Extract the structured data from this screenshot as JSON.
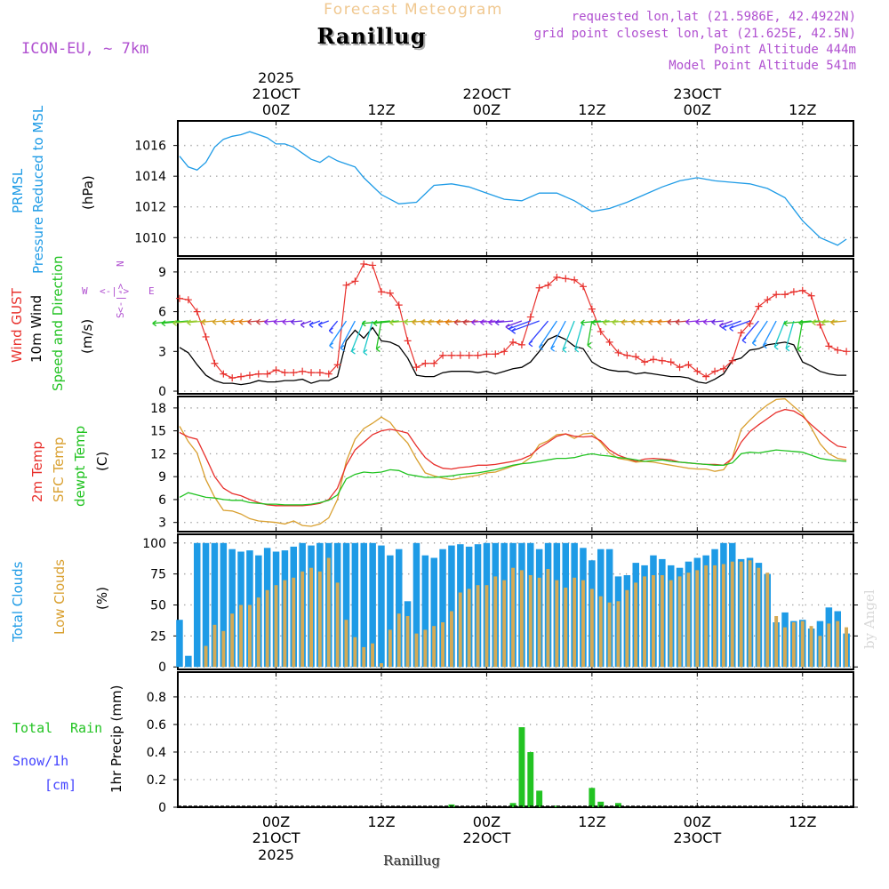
{
  "header": {
    "title_faint": "Forecast Meteogram",
    "station": "Ranillug",
    "model": "ICON-EU, ~ 7km",
    "requested": "requested lon,lat (21.5986E, 42.4922N)",
    "grid_point": "grid point closest lon,lat (21.625E, 42.5N)",
    "point_alt": "Point Altitude 444m",
    "model_alt": "Model Point Altitude 541m",
    "footer_station": "Ranillug",
    "watermark": "by Angel"
  },
  "colors": {
    "pressure": "#1e9be6",
    "gust": "#e8312d",
    "wind": "#000000",
    "temp2m": "#e8312d",
    "sfc": "#d9a030",
    "dewpt": "#22c322",
    "total_clouds": "#1e9be6",
    "low_clouds": "#d4aa55",
    "rain": "#22c322",
    "snow": "#4444ff",
    "label_purple": "#b050d0",
    "title_faint": "#f0c890"
  },
  "time_axis": {
    "top_year": "2025",
    "ticks": [
      {
        "h": 24,
        "label": "00Z",
        "date": "21OCT"
      },
      {
        "h": 36,
        "label": "12Z",
        "date": ""
      },
      {
        "h": 48,
        "label": "00Z",
        "date": "22OCT"
      },
      {
        "h": 60,
        "label": "12Z",
        "date": ""
      },
      {
        "h": 72,
        "label": "00Z",
        "date": "23OCT"
      },
      {
        "h": 84,
        "label": "12Z",
        "date": ""
      }
    ],
    "bottom_year": "2025"
  },
  "panels_text": {
    "pressure": {
      "label1": "PRMSL",
      "label2": "Pressure Reduced to MSL",
      "unit": "(hPa)"
    },
    "wind": {
      "gust": "Wind GUST",
      "wind": "10m Wind",
      "speed": "Speed and Direction",
      "unit": "(m/s)",
      "compass_w": "W",
      "compass_e": "E",
      "compass_n": "N",
      "compass_s": "S"
    },
    "temp": {
      "t2m": "2m Temp",
      "sfc": "SFC Temp",
      "dewpt": "dewpt Temp",
      "unit": "(C)"
    },
    "clouds": {
      "total": "Total Clouds",
      "low": "Low Clouds",
      "unit": "(%)"
    },
    "precip": {
      "total": "Total",
      "rain": "Rain",
      "snow": "Snow/1h",
      "cm": "[cm]",
      "unit": "1hr Precip (mm)"
    }
  },
  "chart_data": [
    {
      "type": "line",
      "title": "PRMSL Pressure Reduced to MSL",
      "ylabel": "(hPa)",
      "ylim": [
        1008.8,
        1017.6
      ],
      "yticks": [
        1010,
        1012,
        1014,
        1016
      ],
      "x": [
        13,
        14,
        15,
        16,
        17,
        18,
        19,
        20,
        21,
        22,
        23,
        24,
        25,
        26,
        27,
        28,
        29,
        30,
        31,
        32,
        33,
        34,
        36,
        38,
        40,
        42,
        44,
        46,
        48,
        50,
        52,
        54,
        56,
        58,
        60,
        62,
        64,
        66,
        68,
        70,
        72,
        74,
        76,
        78,
        80,
        82,
        84,
        86,
        88,
        89
      ],
      "values": [
        1015.3,
        1014.6,
        1014.4,
        1014.9,
        1015.9,
        1016.4,
        1016.6,
        1016.7,
        1016.9,
        1016.7,
        1016.5,
        1016.1,
        1016.1,
        1015.9,
        1015.5,
        1015.1,
        1014.9,
        1015.3,
        1015.0,
        1014.8,
        1014.6,
        1013.9,
        1012.8,
        1012.2,
        1012.3,
        1013.4,
        1013.5,
        1013.3,
        1012.9,
        1012.5,
        1012.4,
        1012.9,
        1012.9,
        1012.4,
        1011.7,
        1011.9,
        1012.3,
        1012.8,
        1013.3,
        1013.7,
        1013.9,
        1013.7,
        1013.6,
        1013.5,
        1013.2,
        1012.6,
        1011.1,
        1010.0,
        1009.5,
        1009.9
      ]
    },
    {
      "type": "line",
      "title": "Wind GUST / 10m Wind Speed and Direction",
      "ylabel": "(m/s)",
      "ylim": [
        -0.2,
        10
      ],
      "yticks": [
        0,
        3,
        6,
        9
      ],
      "x": [
        13,
        14,
        15,
        16,
        17,
        18,
        19,
        20,
        21,
        22,
        23,
        24,
        25,
        26,
        27,
        28,
        29,
        30,
        31,
        32,
        33,
        34,
        35,
        36,
        37,
        38,
        39,
        40,
        41,
        42,
        43,
        44,
        45,
        46,
        47,
        48,
        49,
        50,
        51,
        52,
        53,
        54,
        55,
        56,
        57,
        58,
        59,
        60,
        61,
        62,
        63,
        64,
        65,
        66,
        67,
        68,
        69,
        70,
        71,
        72,
        73,
        74,
        75,
        76,
        77,
        78,
        79,
        80,
        81,
        82,
        83,
        84,
        85,
        86,
        87,
        88,
        89
      ],
      "gust": [
        7.0,
        6.9,
        6.0,
        4.1,
        2.1,
        1.3,
        1.0,
        1.1,
        1.2,
        1.3,
        1.3,
        1.6,
        1.4,
        1.4,
        1.5,
        1.4,
        1.4,
        1.3,
        2.0,
        8.0,
        8.3,
        9.6,
        9.5,
        7.5,
        7.4,
        6.5,
        3.8,
        1.8,
        2.1,
        2.1,
        2.7,
        2.7,
        2.7,
        2.7,
        2.7,
        2.8,
        2.8,
        3.0,
        3.7,
        3.5,
        5.6,
        7.8,
        8.0,
        8.6,
        8.5,
        8.4,
        7.9,
        6.2,
        4.5,
        3.7,
        2.9,
        2.7,
        2.6,
        2.2,
        2.4,
        2.3,
        2.2,
        1.8,
        2.0,
        1.5,
        1.1,
        1.5,
        1.7,
        2.3,
        4.4,
        5.1,
        6.4,
        6.9,
        7.3,
        7.3,
        7.5,
        7.6,
        7.2,
        5.0,
        3.4,
        3.1,
        3.0
      ],
      "wind": [
        3.3,
        2.9,
        2.0,
        1.2,
        0.8,
        0.6,
        0.6,
        0.5,
        0.6,
        0.8,
        0.7,
        0.7,
        0.8,
        0.8,
        0.9,
        0.6,
        0.8,
        0.8,
        1.1,
        3.8,
        4.6,
        4.0,
        4.8,
        3.8,
        3.7,
        3.4,
        2.5,
        1.2,
        1.1,
        1.1,
        1.4,
        1.5,
        1.5,
        1.5,
        1.4,
        1.5,
        1.3,
        1.5,
        1.7,
        1.8,
        2.2,
        3.0,
        3.9,
        4.2,
        3.9,
        3.4,
        3.2,
        2.2,
        1.8,
        1.6,
        1.5,
        1.5,
        1.3,
        1.4,
        1.3,
        1.2,
        1.1,
        1.1,
        1.0,
        0.7,
        0.6,
        0.9,
        1.3,
        2.3,
        2.5,
        3.1,
        3.2,
        3.5,
        3.6,
        3.7,
        3.5,
        2.2,
        1.9,
        1.5,
        1.3,
        1.2,
        1.2
      ],
      "arrows_start": 13,
      "arrows_end": 89
    },
    {
      "type": "line",
      "title": "2m Temp / SFC Temp / dewpt Temp",
      "ylabel": "(C)",
      "ylim": [
        1.8,
        19.5
      ],
      "yticks": [
        3,
        6,
        9,
        12,
        15,
        18
      ],
      "x": [
        13,
        14,
        15,
        16,
        17,
        18,
        19,
        20,
        21,
        22,
        23,
        24,
        25,
        26,
        27,
        28,
        29,
        30,
        31,
        32,
        33,
        34,
        35,
        36,
        37,
        38,
        39,
        40,
        41,
        42,
        43,
        44,
        45,
        46,
        47,
        48,
        49,
        50,
        51,
        52,
        53,
        54,
        55,
        56,
        57,
        58,
        59,
        60,
        61,
        62,
        63,
        64,
        65,
        66,
        67,
        68,
        69,
        70,
        71,
        72,
        73,
        74,
        75,
        76,
        77,
        78,
        79,
        80,
        81,
        82,
        83,
        84,
        85,
        86,
        87,
        88,
        89
      ],
      "t2m": [
        14.8,
        14.2,
        13.9,
        11.5,
        9.0,
        7.5,
        6.8,
        6.5,
        6.0,
        5.6,
        5.3,
        5.2,
        5.2,
        5.2,
        5.2,
        5.3,
        5.5,
        6.0,
        7.5,
        10.5,
        12.5,
        13.5,
        14.5,
        15.0,
        15.2,
        15.0,
        14.7,
        13.0,
        11.5,
        10.6,
        10.1,
        10.0,
        10.2,
        10.3,
        10.5,
        10.5,
        10.6,
        10.8,
        11.0,
        11.3,
        11.8,
        12.8,
        13.5,
        14.3,
        14.6,
        14.3,
        14.2,
        14.3,
        13.7,
        12.5,
        11.8,
        11.4,
        11.0,
        11.3,
        11.4,
        11.3,
        11.2,
        10.9,
        10.8,
        10.7,
        10.6,
        10.6,
        10.5,
        11.4,
        13.5,
        14.9,
        15.8,
        16.6,
        17.4,
        17.8,
        17.6,
        16.9,
        15.8,
        14.8,
        13.8,
        13.0,
        12.8
      ],
      "sfc": [
        15.6,
        13.6,
        12.1,
        8.6,
        6.3,
        4.6,
        4.5,
        4.1,
        3.5,
        3.2,
        3.1,
        3.0,
        2.8,
        3.2,
        2.6,
        2.5,
        2.8,
        3.6,
        6.0,
        11.0,
        13.9,
        15.3,
        16.0,
        16.8,
        16.1,
        14.6,
        13.4,
        11.3,
        9.5,
        9.1,
        8.8,
        8.6,
        8.8,
        9.0,
        9.2,
        9.5,
        9.6,
        10.0,
        10.4,
        10.7,
        11.5,
        13.2,
        13.7,
        14.5,
        14.6,
        14.0,
        14.6,
        14.7,
        13.5,
        12.1,
        11.4,
        11.2,
        10.9,
        11.0,
        10.9,
        10.7,
        10.5,
        10.3,
        10.1,
        10.0,
        10.0,
        9.7,
        9.9,
        11.5,
        15.2,
        16.4,
        17.5,
        18.4,
        19.1,
        19.2,
        18.2,
        17.2,
        15.4,
        13.3,
        12.0,
        11.4,
        11.2
      ],
      "dewpt": [
        6.3,
        6.9,
        6.6,
        6.3,
        6.2,
        6.0,
        5.9,
        5.9,
        5.6,
        5.5,
        5.4,
        5.4,
        5.3,
        5.3,
        5.3,
        5.4,
        5.6,
        5.9,
        6.6,
        8.7,
        9.3,
        9.6,
        9.5,
        9.6,
        9.9,
        9.8,
        9.3,
        9.1,
        8.9,
        8.9,
        9.0,
        9.1,
        9.3,
        9.4,
        9.5,
        9.7,
        9.9,
        10.2,
        10.5,
        10.7,
        10.8,
        11.0,
        11.2,
        11.4,
        11.4,
        11.5,
        11.8,
        12.0,
        11.8,
        11.7,
        11.5,
        11.4,
        11.2,
        11.0,
        11.1,
        11.2,
        11.0,
        10.9,
        10.8,
        10.7,
        10.6,
        10.5,
        10.5,
        10.8,
        12.0,
        12.2,
        12.1,
        12.3,
        12.5,
        12.4,
        12.3,
        12.2,
        11.8,
        11.4,
        11.2,
        11.1,
        11.0
      ]
    },
    {
      "type": "bar",
      "title": "Total Clouds / Low Clouds",
      "ylabel": "(%)",
      "ylim": [
        -2,
        107
      ],
      "yticks": [
        0,
        25,
        50,
        75,
        100
      ],
      "x": [
        13,
        14,
        15,
        16,
        17,
        18,
        19,
        20,
        21,
        22,
        23,
        24,
        25,
        26,
        27,
        28,
        29,
        30,
        31,
        32,
        33,
        34,
        35,
        36,
        37,
        38,
        39,
        40,
        41,
        42,
        43,
        44,
        45,
        46,
        47,
        48,
        49,
        50,
        51,
        52,
        53,
        54,
        55,
        56,
        57,
        58,
        59,
        60,
        61,
        62,
        63,
        64,
        65,
        66,
        67,
        68,
        69,
        70,
        71,
        72,
        73,
        74,
        75,
        76,
        77,
        78,
        79,
        80,
        81,
        82,
        83,
        84,
        85,
        86,
        87,
        88,
        89
      ],
      "total": [
        38,
        9,
        100,
        100,
        100,
        100,
        95,
        93,
        94,
        90,
        96,
        93,
        94,
        97,
        100,
        98,
        100,
        100,
        100,
        100,
        100,
        100,
        100,
        98,
        90,
        95,
        53,
        100,
        90,
        88,
        95,
        98,
        99,
        97,
        99,
        100,
        100,
        100,
        100,
        100,
        100,
        95,
        100,
        100,
        100,
        100,
        96,
        86,
        95,
        95,
        73,
        74,
        84,
        82,
        90,
        87,
        82,
        80,
        85,
        88,
        90,
        95,
        100,
        100,
        87,
        88,
        84,
        75,
        36,
        44,
        37,
        38,
        31,
        37,
        48,
        45,
        27
      ],
      "low": [
        0,
        0,
        0,
        17,
        34,
        29,
        43,
        50,
        50,
        56,
        62,
        66,
        70,
        72,
        77,
        80,
        77,
        88,
        68,
        38,
        24,
        16,
        19,
        3,
        30,
        43,
        41,
        27,
        30,
        33,
        36,
        45,
        60,
        63,
        66,
        66,
        73,
        70,
        80,
        78,
        74,
        72,
        79,
        70,
        64,
        72,
        70,
        63,
        57,
        52,
        53,
        62,
        68,
        73,
        74,
        74,
        70,
        73,
        76,
        78,
        82,
        82,
        83,
        85,
        85,
        86,
        80,
        76,
        41,
        32,
        36,
        37,
        33,
        25,
        35,
        37,
        32
      ]
    },
    {
      "type": "bar",
      "title": "1hr Precip (mm)",
      "ylabel": "1hr Precip (mm)",
      "ylim": [
        0,
        0.98
      ],
      "yticks": [
        0,
        0.2,
        0.4,
        0.6,
        0.8
      ],
      "x": [
        44,
        51,
        52,
        53,
        54,
        56,
        60,
        61,
        63
      ],
      "rain": [
        0.02,
        0.03,
        0.58,
        0.4,
        0.12,
        0.01,
        0.14,
        0.04,
        0.03
      ],
      "snow": []
    }
  ]
}
